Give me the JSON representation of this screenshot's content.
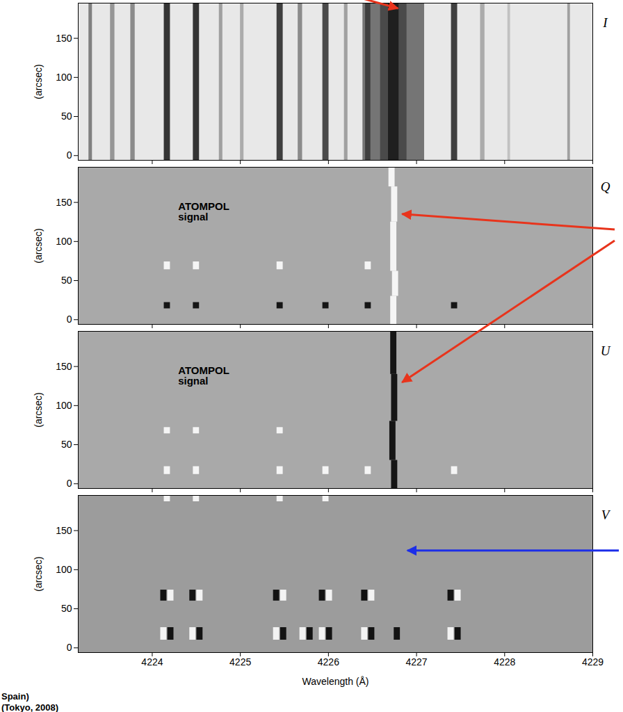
{
  "chart_data": [
    {
      "type": "spectrum",
      "stokes": "I",
      "ylabel": "(arcsec)",
      "xlim": [
        4223.16,
        4229.0
      ],
      "xticks": [
        4224,
        4225,
        4226,
        4227,
        4228,
        4229
      ],
      "ylim": [
        -6,
        195
      ],
      "yticks": [
        0,
        50,
        100,
        150
      ],
      "tick_labels": "y",
      "depth_lim": [
        0,
        1
      ],
      "lines": [
        {
          "x": 4223.3,
          "width": 0.04,
          "depth": 0.5
        },
        {
          "x": 4223.55,
          "width": 0.05,
          "depth": 0.4
        },
        {
          "x": 4223.78,
          "width": 0.05,
          "depth": 0.45
        },
        {
          "x": 4224.17,
          "width": 0.07,
          "depth": 0.85
        },
        {
          "x": 4224.5,
          "width": 0.07,
          "depth": 0.85
        },
        {
          "x": 4224.78,
          "width": 0.04,
          "depth": 0.35
        },
        {
          "x": 4225.02,
          "width": 0.04,
          "depth": 0.3
        },
        {
          "x": 4225.45,
          "width": 0.07,
          "depth": 0.8
        },
        {
          "x": 4225.68,
          "width": 0.05,
          "depth": 0.45
        },
        {
          "x": 4225.97,
          "width": 0.07,
          "depth": 0.75
        },
        {
          "x": 4226.2,
          "width": 0.04,
          "depth": 0.35
        },
        {
          "x": 4226.74,
          "width": 0.7,
          "depth": 0.55
        },
        {
          "x": 4226.74,
          "width": 0.3,
          "depth": 0.75
        },
        {
          "x": 4226.45,
          "width": 0.06,
          "depth": 0.8
        },
        {
          "x": 4226.74,
          "width": 0.12,
          "depth": 0.95
        },
        {
          "x": 4227.43,
          "width": 0.07,
          "depth": 0.8
        },
        {
          "x": 4227.75,
          "width": 0.05,
          "depth": 0.3
        },
        {
          "x": 4228.05,
          "width": 0.03,
          "depth": 0.2
        },
        {
          "x": 4228.73,
          "width": 0.03,
          "depth": 0.35
        }
      ]
    },
    {
      "type": "polarization",
      "stokes": "Q",
      "ylabel": "(arcsec)",
      "annotations": [
        "ATOMPOL signal"
      ],
      "xlim": [
        4223.16,
        4229.0
      ],
      "xticks": [
        4224,
        4225,
        4226,
        4227,
        4228,
        4229
      ],
      "ylim": [
        -6,
        195
      ],
      "yticks": [
        0,
        50,
        100,
        150
      ],
      "tick_labels": "y",
      "features": [
        {
          "x": 4226.74,
          "y0": -6,
          "y1": 30,
          "sign": 1
        },
        {
          "x": 4226.76,
          "y0": 30,
          "y1": 62,
          "sign": 1
        },
        {
          "x": 4226.74,
          "y0": 62,
          "y1": 125,
          "sign": 1
        },
        {
          "x": 4226.75,
          "y0": 125,
          "y1": 170,
          "sign": 1
        },
        {
          "x": 4226.72,
          "y0": 170,
          "y1": 195,
          "sign": 1
        },
        {
          "x": 4224.17,
          "y0": 14,
          "y1": 22,
          "sign": -1
        },
        {
          "x": 4224.5,
          "y0": 14,
          "y1": 22,
          "sign": -1
        },
        {
          "x": 4225.45,
          "y0": 14,
          "y1": 22,
          "sign": -1
        },
        {
          "x": 4225.97,
          "y0": 14,
          "y1": 22,
          "sign": -1
        },
        {
          "x": 4226.45,
          "y0": 14,
          "y1": 22,
          "sign": -1
        },
        {
          "x": 4227.43,
          "y0": 14,
          "y1": 22,
          "sign": -1
        },
        {
          "x": 4224.17,
          "y0": 64,
          "y1": 74,
          "sign": 1
        },
        {
          "x": 4224.5,
          "y0": 64,
          "y1": 74,
          "sign": 1
        },
        {
          "x": 4225.45,
          "y0": 64,
          "y1": 74,
          "sign": 1
        },
        {
          "x": 4226.45,
          "y0": 64,
          "y1": 74,
          "sign": 1
        }
      ]
    },
    {
      "type": "polarization",
      "stokes": "U",
      "ylabel": "(arcsec)",
      "annotations": [
        "ATOMPOL signal"
      ],
      "xlim": [
        4223.16,
        4229.0
      ],
      "xticks": [
        4224,
        4225,
        4226,
        4227,
        4228,
        4229
      ],
      "ylim": [
        -6,
        195
      ],
      "yticks": [
        0,
        50,
        100,
        150
      ],
      "tick_labels": "y",
      "features": [
        {
          "x": 4226.75,
          "y0": -6,
          "y1": 30,
          "sign": -1
        },
        {
          "x": 4226.73,
          "y0": 30,
          "y1": 80,
          "sign": -1
        },
        {
          "x": 4226.75,
          "y0": 80,
          "y1": 140,
          "sign": -1
        },
        {
          "x": 4226.74,
          "y0": 140,
          "y1": 195,
          "sign": -1
        },
        {
          "x": 4224.17,
          "y0": 12,
          "y1": 22,
          "sign": 1
        },
        {
          "x": 4224.5,
          "y0": 12,
          "y1": 22,
          "sign": 1
        },
        {
          "x": 4225.45,
          "y0": 12,
          "y1": 22,
          "sign": 1
        },
        {
          "x": 4225.97,
          "y0": 12,
          "y1": 22,
          "sign": 1
        },
        {
          "x": 4226.45,
          "y0": 12,
          "y1": 22,
          "sign": 1
        },
        {
          "x": 4227.43,
          "y0": 12,
          "y1": 22,
          "sign": 1
        },
        {
          "x": 4224.17,
          "y0": 64,
          "y1": 72,
          "sign": 1
        },
        {
          "x": 4224.5,
          "y0": 64,
          "y1": 72,
          "sign": 1
        },
        {
          "x": 4225.45,
          "y0": 64,
          "y1": 72,
          "sign": 1
        }
      ]
    },
    {
      "type": "polarization",
      "stokes": "V",
      "ylabel": "(arcsec)",
      "xlabel": "Wavelength (Å)",
      "xlim": [
        4223.16,
        4229.0
      ],
      "xticks": [
        4224,
        4225,
        4226,
        4227,
        4228,
        4229
      ],
      "ylim": [
        -6,
        195
      ],
      "yticks": [
        0,
        50,
        100,
        150
      ],
      "features": [
        {
          "x": 4224.13,
          "y0": 60,
          "y1": 74,
          "sign": -1
        },
        {
          "x": 4224.21,
          "y0": 60,
          "y1": 74,
          "sign": 1
        },
        {
          "x": 4224.46,
          "y0": 60,
          "y1": 74,
          "sign": -1
        },
        {
          "x": 4224.54,
          "y0": 60,
          "y1": 74,
          "sign": 1
        },
        {
          "x": 4225.41,
          "y0": 60,
          "y1": 74,
          "sign": -1
        },
        {
          "x": 4225.49,
          "y0": 60,
          "y1": 74,
          "sign": 1
        },
        {
          "x": 4225.93,
          "y0": 60,
          "y1": 74,
          "sign": -1
        },
        {
          "x": 4226.01,
          "y0": 60,
          "y1": 74,
          "sign": 1
        },
        {
          "x": 4226.41,
          "y0": 60,
          "y1": 74,
          "sign": -1
        },
        {
          "x": 4226.49,
          "y0": 60,
          "y1": 74,
          "sign": 1
        },
        {
          "x": 4227.39,
          "y0": 60,
          "y1": 74,
          "sign": -1
        },
        {
          "x": 4227.47,
          "y0": 60,
          "y1": 74,
          "sign": 1
        },
        {
          "x": 4224.13,
          "y0": 10,
          "y1": 26,
          "sign": 1
        },
        {
          "x": 4224.21,
          "y0": 10,
          "y1": 26,
          "sign": -1
        },
        {
          "x": 4224.46,
          "y0": 10,
          "y1": 26,
          "sign": 1
        },
        {
          "x": 4224.54,
          "y0": 10,
          "y1": 26,
          "sign": -1
        },
        {
          "x": 4225.41,
          "y0": 10,
          "y1": 26,
          "sign": 1
        },
        {
          "x": 4225.49,
          "y0": 10,
          "y1": 26,
          "sign": -1
        },
        {
          "x": 4225.71,
          "y0": 10,
          "y1": 26,
          "sign": 1
        },
        {
          "x": 4225.79,
          "y0": 10,
          "y1": 26,
          "sign": -1
        },
        {
          "x": 4225.93,
          "y0": 10,
          "y1": 26,
          "sign": 1
        },
        {
          "x": 4226.01,
          "y0": 10,
          "y1": 26,
          "sign": -1
        },
        {
          "x": 4226.41,
          "y0": 10,
          "y1": 26,
          "sign": 1
        },
        {
          "x": 4226.49,
          "y0": 10,
          "y1": 26,
          "sign": -1
        },
        {
          "x": 4226.78,
          "y0": 10,
          "y1": 26,
          "sign": -1
        },
        {
          "x": 4227.39,
          "y0": 10,
          "y1": 26,
          "sign": 1
        },
        {
          "x": 4227.47,
          "y0": 10,
          "y1": 26,
          "sign": -1
        },
        {
          "x": 4224.17,
          "y0": 187,
          "y1": 195,
          "sign": 1
        },
        {
          "x": 4224.5,
          "y0": 187,
          "y1": 195,
          "sign": 1
        },
        {
          "x": 4225.45,
          "y0": 187,
          "y1": 195,
          "sign": 1
        },
        {
          "x": 4225.97,
          "y0": 187,
          "y1": 195,
          "sign": 1
        }
      ]
    }
  ],
  "footer": [
    "Spain)",
    "(Tokyo, 2008)"
  ]
}
